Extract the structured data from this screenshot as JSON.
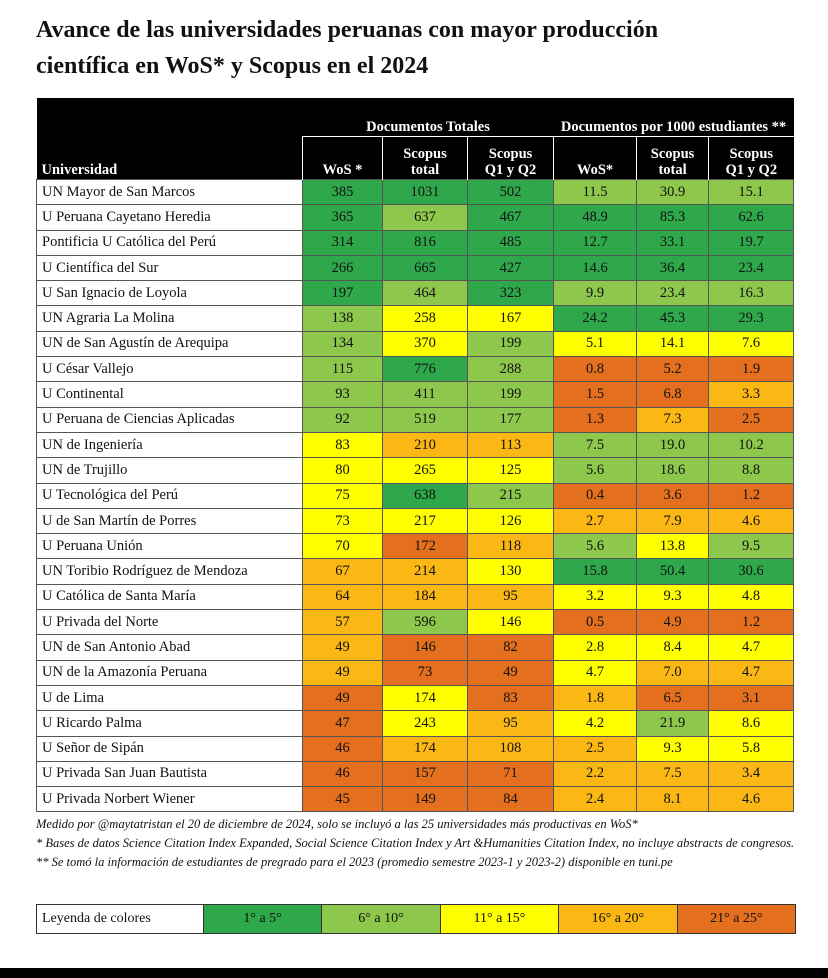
{
  "title": [
    "Avance de las universidades peruanas con mayor producción",
    "científica en WoS* y Scopus en el 2024"
  ],
  "table": {
    "groups": [
      "Documentos Totales",
      "Documentos por 1000 estudiantes **"
    ],
    "first_header": "Universidad",
    "columns": [
      [
        "WoS *"
      ],
      [
        "Scopus",
        "total"
      ],
      [
        "Scopus",
        "Q1 y Q2"
      ],
      [
        "WoS*"
      ],
      [
        "Scopus",
        "total"
      ],
      [
        "Scopus",
        "Q1 y Q2"
      ]
    ],
    "rows": [
      {
        "name": "UN Mayor de San Marcos",
        "values": [
          "385",
          "1031",
          "502",
          "11.5",
          "30.9",
          "15.1"
        ],
        "tiers": [
          0,
          0,
          0,
          1,
          1,
          1
        ]
      },
      {
        "name": "U Peruana Cayetano Heredia",
        "values": [
          "365",
          "637",
          "467",
          "48.9",
          "85.3",
          "62.6"
        ],
        "tiers": [
          0,
          1,
          0,
          0,
          0,
          0
        ]
      },
      {
        "name": "Pontificia U Católica del Perú",
        "values": [
          "314",
          "816",
          "485",
          "12.7",
          "33.1",
          "19.7"
        ],
        "tiers": [
          0,
          0,
          0,
          0,
          0,
          0
        ]
      },
      {
        "name": "U Científica del Sur",
        "values": [
          "266",
          "665",
          "427",
          "14.6",
          "36.4",
          "23.4"
        ],
        "tiers": [
          0,
          0,
          0,
          0,
          0,
          0
        ]
      },
      {
        "name": "U San Ignacio de Loyola",
        "values": [
          "197",
          "464",
          "323",
          "9.9",
          "23.4",
          "16.3"
        ],
        "tiers": [
          0,
          1,
          0,
          1,
          1,
          1
        ]
      },
      {
        "name": "UN Agraria La Molina",
        "values": [
          "138",
          "258",
          "167",
          "24.2",
          "45.3",
          "29.3"
        ],
        "tiers": [
          1,
          2,
          2,
          0,
          0,
          0
        ]
      },
      {
        "name": "UN de San Agustín de Arequipa",
        "values": [
          "134",
          "370",
          "199",
          "5.1",
          "14.1",
          "7.6"
        ],
        "tiers": [
          1,
          2,
          1,
          2,
          2,
          2
        ]
      },
      {
        "name": "U César Vallejo",
        "values": [
          "115",
          "776",
          "288",
          "0.8",
          "5.2",
          "1.9"
        ],
        "tiers": [
          1,
          0,
          1,
          4,
          4,
          4
        ]
      },
      {
        "name": "U Continental",
        "values": [
          "93",
          "411",
          "199",
          "1.5",
          "6.8",
          "3.3"
        ],
        "tiers": [
          1,
          1,
          1,
          4,
          4,
          3
        ]
      },
      {
        "name": "U Peruana de Ciencias Aplicadas",
        "values": [
          "92",
          "519",
          "177",
          "1.3",
          "7.3",
          "2.5"
        ],
        "tiers": [
          1,
          1,
          1,
          4,
          3,
          4
        ]
      },
      {
        "name": "UN de Ingeniería",
        "values": [
          "83",
          "210",
          "113",
          "7.5",
          "19.0",
          "10.2"
        ],
        "tiers": [
          2,
          3,
          3,
          1,
          1,
          1
        ]
      },
      {
        "name": "UN de Trujillo",
        "values": [
          "80",
          "265",
          "125",
          "5.6",
          "18.6",
          "8.8"
        ],
        "tiers": [
          2,
          2,
          2,
          1,
          1,
          1
        ]
      },
      {
        "name": "U Tecnológica del Perú",
        "values": [
          "75",
          "638",
          "215",
          "0.4",
          "3.6",
          "1.2"
        ],
        "tiers": [
          2,
          0,
          1,
          4,
          4,
          4
        ]
      },
      {
        "name": "U de San Martín de Porres",
        "values": [
          "73",
          "217",
          "126",
          "2.7",
          "7.9",
          "4.6"
        ],
        "tiers": [
          2,
          2,
          2,
          3,
          3,
          3
        ]
      },
      {
        "name": "U Peruana Unión",
        "values": [
          "70",
          "172",
          "118",
          "5.6",
          "13.8",
          "9.5"
        ],
        "tiers": [
          2,
          4,
          3,
          1,
          2,
          1
        ]
      },
      {
        "name": "UN Toribio Rodríguez de Mendoza",
        "values": [
          "67",
          "214",
          "130",
          "15.8",
          "50.4",
          "30.6"
        ],
        "tiers": [
          3,
          3,
          2,
          0,
          0,
          0
        ]
      },
      {
        "name": "U Católica de Santa María",
        "values": [
          "64",
          "184",
          "95",
          "3.2",
          "9.3",
          "4.8"
        ],
        "tiers": [
          3,
          3,
          3,
          2,
          2,
          2
        ]
      },
      {
        "name": "U Privada del Norte",
        "values": [
          "57",
          "596",
          "146",
          "0.5",
          "4.9",
          "1.2"
        ],
        "tiers": [
          3,
          1,
          2,
          4,
          4,
          4
        ]
      },
      {
        "name": "UN de San Antonio Abad",
        "values": [
          "49",
          "146",
          "82",
          "2.8",
          "8.4",
          "4.7"
        ],
        "tiers": [
          3,
          4,
          4,
          2,
          2,
          2
        ]
      },
      {
        "name": "UN de la Amazonía Peruana",
        "values": [
          "49",
          "73",
          "49",
          "4.7",
          "7.0",
          "4.7"
        ],
        "tiers": [
          3,
          4,
          4,
          2,
          3,
          3
        ]
      },
      {
        "name": "U de Lima",
        "values": [
          "49",
          "174",
          "83",
          "1.8",
          "6.5",
          "3.1"
        ],
        "tiers": [
          4,
          2,
          4,
          3,
          4,
          4
        ]
      },
      {
        "name": "U Ricardo Palma",
        "values": [
          "47",
          "243",
          "95",
          "4.2",
          "21.9",
          "8.6"
        ],
        "tiers": [
          4,
          2,
          3,
          2,
          1,
          2
        ]
      },
      {
        "name": "U Señor de Sipán",
        "values": [
          "46",
          "174",
          "108",
          "2.5",
          "9.3",
          "5.8"
        ],
        "tiers": [
          4,
          3,
          3,
          3,
          2,
          2
        ]
      },
      {
        "name": "U Privada San Juan Bautista",
        "values": [
          "46",
          "157",
          "71",
          "2.2",
          "7.5",
          "3.4"
        ],
        "tiers": [
          4,
          4,
          4,
          3,
          3,
          3
        ]
      },
      {
        "name": "U Privada Norbert Wiener",
        "values": [
          "45",
          "149",
          "84",
          "2.4",
          "8.1",
          "4.6"
        ],
        "tiers": [
          4,
          4,
          4,
          3,
          3,
          3
        ]
      }
    ]
  },
  "notes": [
    "Medido por @maytatristan el 20 de diciembre de 2024, solo se incluyó a las 25 universidades más productivas en WoS*",
    "* Bases de datos Science Citation Index Expanded, Social Science Citation Index y Art &Humanities Citation Index, no incluye abstracts de congresos.",
    "** Se tomó la información de estudiantes de pregrado para el 2023 (promedio semestre 2023-1 y 2023-2) disponible en tuni.pe"
  ],
  "legend": {
    "label": "Leyenda de colores",
    "items": [
      {
        "label": "1° a 5°",
        "color": "#2fa84b"
      },
      {
        "label": "6° a 10°",
        "color": "#8dc74c"
      },
      {
        "label": "11° a 15°",
        "color": "#ffff00"
      },
      {
        "label": "16° a 20°",
        "color": "#fbb714"
      },
      {
        "label": "21° a 25°",
        "color": "#e36f1f"
      }
    ]
  }
}
